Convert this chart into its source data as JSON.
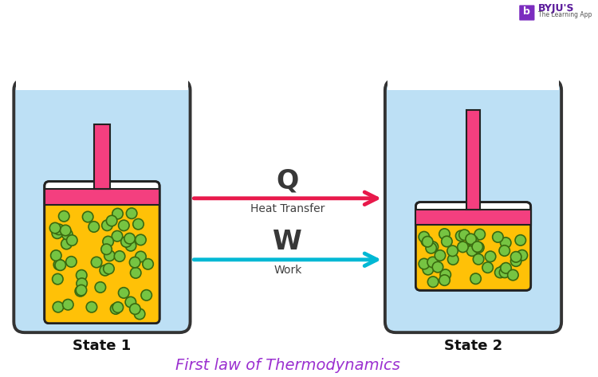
{
  "bg_color": "#ffffff",
  "title": "First law of Thermodynamics",
  "title_color": "#9b30d0",
  "title_fontsize": 14,
  "state1_label": "State 1",
  "state2_label": "State 2",
  "label_fontsize": 13,
  "outer_fill": "#bde0f5",
  "outer_border": "#333333",
  "inner_fill": "#ffffff",
  "inner_border": "#222222",
  "gas_color": "#ffc107",
  "piston_color": "#f43f7f",
  "particle_fill": "#76c442",
  "particle_edge": "#3a6b10",
  "Q_arrow_color": "#e8194b",
  "W_arrow_color": "#00b8d4",
  "Q_label": "Q",
  "W_label": "W",
  "Q_sublabel": "Heat Transfer",
  "W_sublabel": "Work"
}
